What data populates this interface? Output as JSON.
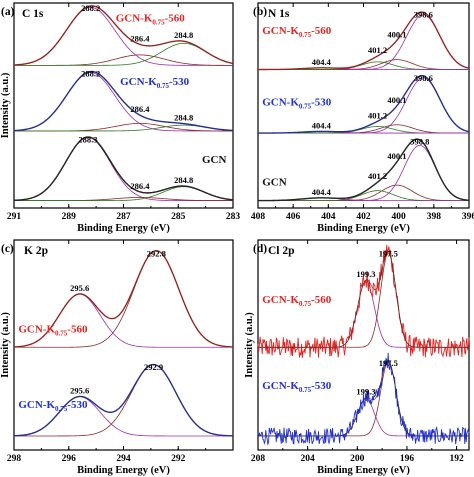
{
  "colors": {
    "red": "#e8231f",
    "blue": "#1f2fd6",
    "black": "#111111",
    "purple": "#9a2ea8",
    "brown": "#8b2a2a",
    "green": "#2f7a22"
  },
  "chart_data": [
    {
      "id": "a",
      "type": "line",
      "panel_label": "(a)",
      "title": "C 1s",
      "xlabel": "Binding Energy (eV)",
      "ylabel": "Intensity (a.u.)",
      "xlim": [
        291,
        283
      ],
      "xticks": [
        "291",
        "289",
        "287",
        "285",
        "283"
      ],
      "x_reversed": true,
      "series": [
        {
          "name": "GCN-K0.75-560",
          "label": {
            "main": "GCN-K",
            "sub": "0.75",
            "suffix": "-560"
          },
          "color": "red",
          "peaks": [
            {
              "center": 288.2,
              "amp": 1.0,
              "width": 1.3
            },
            {
              "center": 286.4,
              "amp": 0.18,
              "width": 1.3
            },
            {
              "center": 284.8,
              "amp": 0.38,
              "width": 1.2
            }
          ],
          "peak_labels": [
            "288.2",
            "286.4",
            "284.8"
          ]
        },
        {
          "name": "GCN-K0.75-530",
          "label": {
            "main": "GCN-K",
            "sub": "0.75",
            "suffix": "-530"
          },
          "color": "blue",
          "peaks": [
            {
              "center": 288.2,
              "amp": 1.0,
              "width": 1.3
            },
            {
              "center": 286.4,
              "amp": 0.13,
              "width": 1.3
            },
            {
              "center": 284.8,
              "amp": 0.1,
              "width": 1.2
            }
          ],
          "peak_labels": [
            "288.2",
            "286.4",
            "284.8"
          ]
        },
        {
          "name": "GCN",
          "label": {
            "main": "GCN",
            "sub": "",
            "suffix": ""
          },
          "color": "black",
          "peaks": [
            {
              "center": 288.3,
              "amp": 1.0,
              "width": 1.2
            },
            {
              "center": 286.4,
              "amp": 0.05,
              "width": 1.3
            },
            {
              "center": 284.8,
              "amp": 0.22,
              "width": 1.1
            }
          ],
          "peak_labels": [
            "288.3",
            "286.4",
            "284.8"
          ]
        }
      ]
    },
    {
      "id": "b",
      "type": "line",
      "panel_label": "(b)",
      "title": "N 1s",
      "xlabel": "Binding Energy (eV)",
      "ylabel": "",
      "xlim": [
        408,
        396
      ],
      "xticks": [
        "408",
        "406",
        "404",
        "402",
        "400",
        "398",
        "396"
      ],
      "x_reversed": true,
      "series": [
        {
          "name": "GCN-K0.75-560",
          "label": {
            "main": "GCN-K",
            "sub": "0.75",
            "suffix": "-560"
          },
          "color": "red",
          "peaks": [
            {
              "center": 398.6,
              "amp": 1.0,
              "width": 1.4
            },
            {
              "center": 400.1,
              "amp": 0.18,
              "width": 1.3
            },
            {
              "center": 401.2,
              "amp": 0.14,
              "width": 1.3
            },
            {
              "center": 404.4,
              "amp": 0.03,
              "width": 1.5
            }
          ],
          "peak_labels": [
            "398.6",
            "400.1",
            "401.2",
            "404.4"
          ]
        },
        {
          "name": "GCN-K0.75-530",
          "label": {
            "main": "GCN-K",
            "sub": "0.75",
            "suffix": "-530"
          },
          "color": "blue",
          "peaks": [
            {
              "center": 398.6,
              "amp": 1.0,
              "width": 1.4
            },
            {
              "center": 400.1,
              "amp": 0.15,
              "width": 1.3
            },
            {
              "center": 401.2,
              "amp": 0.12,
              "width": 1.3
            },
            {
              "center": 404.4,
              "amp": 0.03,
              "width": 1.5
            }
          ],
          "peak_labels": [
            "398.6",
            "400.1",
            "401.2",
            "404.4"
          ]
        },
        {
          "name": "GCN",
          "label": {
            "main": "GCN",
            "sub": "",
            "suffix": ""
          },
          "color": "black",
          "peaks": [
            {
              "center": 398.8,
              "amp": 1.0,
              "width": 1.3
            },
            {
              "center": 400.1,
              "amp": 0.28,
              "width": 1.3
            },
            {
              "center": 401.2,
              "amp": 0.18,
              "width": 1.3
            },
            {
              "center": 404.4,
              "amp": 0.05,
              "width": 1.6
            }
          ],
          "peak_labels": [
            "398.8",
            "400.1",
            "401.2",
            "404.4"
          ]
        }
      ]
    },
    {
      "id": "c",
      "type": "line",
      "panel_label": "(c)",
      "title": "K 2p",
      "xlabel": "Binding Energy (eV)",
      "ylabel": "Intensity (a.u.)",
      "xlim": [
        298,
        290
      ],
      "xticks": [
        "298",
        "296",
        "294",
        "292"
      ],
      "x_reversed": true,
      "series": [
        {
          "name": "GCN-K0.75-560",
          "label": {
            "main": "GCN-K",
            "sub": "0.75",
            "suffix": "-560"
          },
          "color": "red",
          "peaks": [
            {
              "center": 295.6,
              "amp": 0.55,
              "width": 1.1
            },
            {
              "center": 292.8,
              "amp": 1.0,
              "width": 1.2
            }
          ],
          "peak_labels": [
            "295.6",
            "292.8"
          ]
        },
        {
          "name": "GCN-K0.75-530",
          "label": {
            "main": "GCN-K",
            "sub": "0.75",
            "suffix": "-530"
          },
          "color": "blue",
          "peaks": [
            {
              "center": 295.6,
              "amp": 0.55,
              "width": 1.1
            },
            {
              "center": 292.9,
              "amp": 1.0,
              "width": 1.2
            }
          ],
          "peak_labels": [
            "295.6",
            "292.9"
          ]
        }
      ]
    },
    {
      "id": "d",
      "type": "line",
      "panel_label": "(d)",
      "title": "Cl 2p",
      "xlabel": "Binding Energy (eV)",
      "ylabel": "Intensity (a.u.)",
      "xlim": [
        208,
        191
      ],
      "xticks": [
        "208",
        "204",
        "200",
        "196",
        "192"
      ],
      "x_reversed": true,
      "series": [
        {
          "name": "GCN-K0.75-560",
          "label": {
            "main": "GCN-K",
            "sub": "0.75",
            "suffix": "-560"
          },
          "color": "red",
          "peaks": [
            {
              "center": 199.3,
              "amp": 0.7,
              "width": 1.0
            },
            {
              "center": 197.5,
              "amp": 1.0,
              "width": 0.9
            }
          ],
          "peak_labels": [
            "199.3",
            "197.5"
          ]
        },
        {
          "name": "GCN-K0.75-530",
          "label": {
            "main": "GCN-K",
            "sub": "0.75",
            "suffix": "-530"
          },
          "color": "blue",
          "peaks": [
            {
              "center": 199.3,
              "amp": 0.5,
              "width": 1.0
            },
            {
              "center": 197.5,
              "amp": 1.0,
              "width": 0.9
            }
          ],
          "peak_labels": [
            "199.3",
            "197.5"
          ]
        }
      ]
    }
  ]
}
